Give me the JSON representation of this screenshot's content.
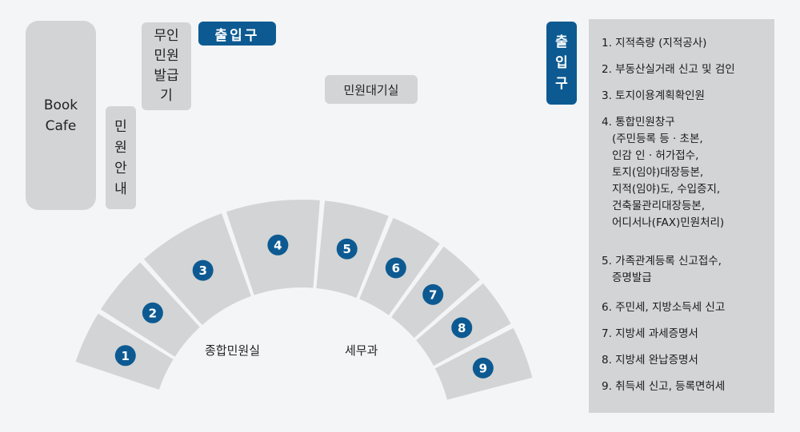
{
  "rooms": {
    "book_cafe": "Book Cafe",
    "info_desk": "민원안내",
    "kiosk": "무인민원발급기",
    "waiting_room": "민원대기실",
    "civil_room": "종합민원실",
    "tax_office": "세무과"
  },
  "exits": {
    "top": "출입구",
    "side": "출입구"
  },
  "windows": [
    "1",
    "2",
    "3",
    "4",
    "5",
    "6",
    "7",
    "8",
    "9"
  ],
  "services": [
    {
      "title": "1. 지적측량 (지적공사)"
    },
    {
      "title": "2. 부동산실거래 신고 및 검인"
    },
    {
      "title": "3. 토지이용계획확인원"
    },
    {
      "title": "4. 통합민원창구",
      "details": [
        "(주민등록 등 · 초본,",
        "인감 인 · 허가접수,",
        "토지(임야)대장등본,",
        "지적(임야)도, 수입증지,",
        "건축물관리대장등본,",
        "어디서나(FAX)민원처리)"
      ]
    },
    {
      "title": "5. 가족관계등록 신고접수,",
      "details": [
        "증명발급"
      ]
    },
    {
      "title": "6. 주민세, 지방소득세 신고"
    },
    {
      "title": "7. 지방세 과세증명서"
    },
    {
      "title": "8. 지방세 완납증명서"
    },
    {
      "title": "9. 취득세 신고, 등록면허세"
    }
  ],
  "colors": {
    "accent": "#0d5a92",
    "counter": "#d3d4d5",
    "background": "#f4f5f6"
  }
}
